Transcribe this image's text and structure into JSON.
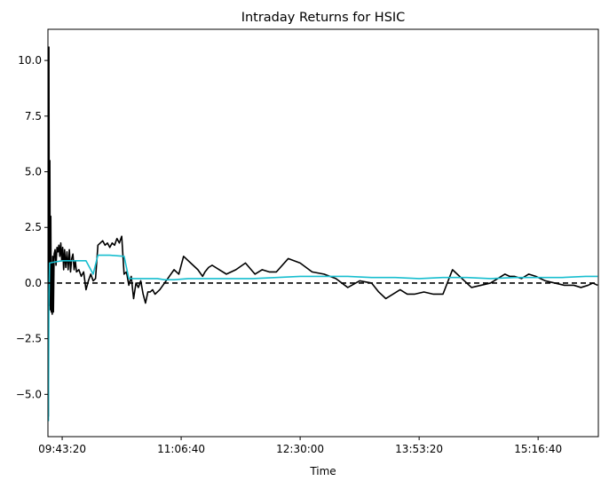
{
  "chart_data": {
    "type": "line",
    "title": "Intraday Returns for HSIC",
    "xlabel": "Time",
    "ylabel": "",
    "x_tick_labels": [
      "09:43:20",
      "11:06:40",
      "12:30:00",
      "13:53:20",
      "15:16:40"
    ],
    "x_tick_seconds": [
      34999,
      39999,
      44999,
      49999,
      54999
    ],
    "xlim_seconds": [
      34400,
      57530
    ],
    "ylim": [
      -6.9,
      11.4
    ],
    "y_ticks": [
      -5.0,
      -2.5,
      0.0,
      2.5,
      5.0,
      7.5,
      10.0
    ],
    "y_tick_labels": [
      "−5.0",
      "−2.5",
      "0.0",
      "2.5",
      "5.0",
      "7.5",
      "10.0"
    ],
    "grid": false,
    "reference_line": {
      "y": 0,
      "style": "dashed",
      "color": "#000000"
    },
    "series": [
      {
        "color": "#000000",
        "x_seconds": [
          34420,
          34440,
          34460,
          34480,
          34500,
          34520,
          34540,
          34560,
          34580,
          34600,
          34630,
          34660,
          34700,
          34740,
          34780,
          34820,
          34860,
          34900,
          34940,
          34980,
          35020,
          35060,
          35100,
          35150,
          35200,
          35250,
          35300,
          35350,
          35400,
          35450,
          35500,
          35550,
          35600,
          35700,
          35800,
          35900,
          36000,
          36100,
          36200,
          36300,
          36400,
          36500,
          36600,
          36700,
          36800,
          36900,
          37000,
          37100,
          37200,
          37300,
          37400,
          37500,
          37600,
          37700,
          37800,
          37900,
          38000,
          38100,
          38200,
          38300,
          38400,
          38500,
          38600,
          38700,
          38800,
          38900,
          39000,
          39100,
          39300,
          39500,
          39700,
          39900,
          40100,
          40400,
          40700,
          40900,
          41000,
          41150,
          41300,
          41600,
          41900,
          42300,
          42700,
          43100,
          43400,
          43700,
          44000,
          44500,
          45000,
          45500,
          46000,
          46500,
          47000,
          47500,
          48000,
          48300,
          48600,
          48900,
          49200,
          49500,
          49800,
          50200,
          50600,
          51000,
          51400,
          51800,
          52200,
          52600,
          53000,
          53300,
          53600,
          53800,
          54000,
          54300,
          54600,
          54900,
          55300,
          55700,
          56100,
          56500,
          56800,
          57100,
          57300,
          57500
        ],
        "values": [
          -6.0,
          10.6,
          -1.0,
          5.5,
          -1.2,
          3.0,
          -1.3,
          0.9,
          -1.4,
          1.2,
          -1.3,
          1.3,
          1.5,
          0.8,
          1.6,
          1.4,
          1.7,
          1.2,
          1.8,
          1.0,
          1.6,
          0.6,
          1.5,
          0.7,
          1.4,
          0.6,
          1.5,
          0.5,
          1.1,
          1.3,
          0.6,
          1.0,
          0.5,
          0.6,
          0.3,
          0.5,
          -0.3,
          0.1,
          0.4,
          0.1,
          0.2,
          1.7,
          1.8,
          1.9,
          1.7,
          1.8,
          1.6,
          1.8,
          1.7,
          2.0,
          1.8,
          2.1,
          0.4,
          0.5,
          -0.1,
          0.3,
          -0.7,
          0.0,
          -0.2,
          0.1,
          -0.5,
          -0.9,
          -0.4,
          -0.4,
          -0.3,
          -0.5,
          -0.4,
          -0.3,
          0.0,
          0.3,
          0.6,
          0.4,
          1.2,
          0.9,
          0.6,
          0.3,
          0.5,
          0.7,
          0.8,
          0.6,
          0.4,
          0.6,
          0.9,
          0.4,
          0.6,
          0.5,
          0.5,
          1.1,
          0.9,
          0.5,
          0.4,
          0.2,
          -0.2,
          0.1,
          0.0,
          -0.4,
          -0.7,
          -0.5,
          -0.3,
          -0.5,
          -0.5,
          -0.4,
          -0.5,
          -0.5,
          0.6,
          0.2,
          -0.2,
          -0.1,
          0.0,
          0.2,
          0.4,
          0.3,
          0.3,
          0.2,
          0.4,
          0.3,
          0.1,
          0.0,
          -0.1,
          -0.1,
          -0.2,
          -0.1,
          0.0,
          -0.1
        ]
      },
      {
        "color": "#17becf",
        "x_seconds": [
          34420,
          34440,
          34470,
          34700,
          35000,
          35500,
          36000,
          36300,
          36500,
          37000,
          37600,
          37800,
          38000,
          38500,
          39000,
          39300,
          39700,
          40300,
          41000,
          42000,
          43000,
          44000,
          45000,
          46000,
          47000,
          48000,
          49000,
          50000,
          51000,
          52000,
          53000,
          54000,
          55000,
          56000,
          57000,
          57500
        ],
        "values": [
          -6.2,
          -1.0,
          0.9,
          0.95,
          1.0,
          1.0,
          1.0,
          0.4,
          1.25,
          1.25,
          1.2,
          0.2,
          0.2,
          0.2,
          0.2,
          0.15,
          0.15,
          0.2,
          0.2,
          0.2,
          0.2,
          0.25,
          0.3,
          0.3,
          0.3,
          0.25,
          0.25,
          0.2,
          0.25,
          0.25,
          0.2,
          0.25,
          0.25,
          0.25,
          0.3,
          0.3
        ]
      }
    ]
  }
}
